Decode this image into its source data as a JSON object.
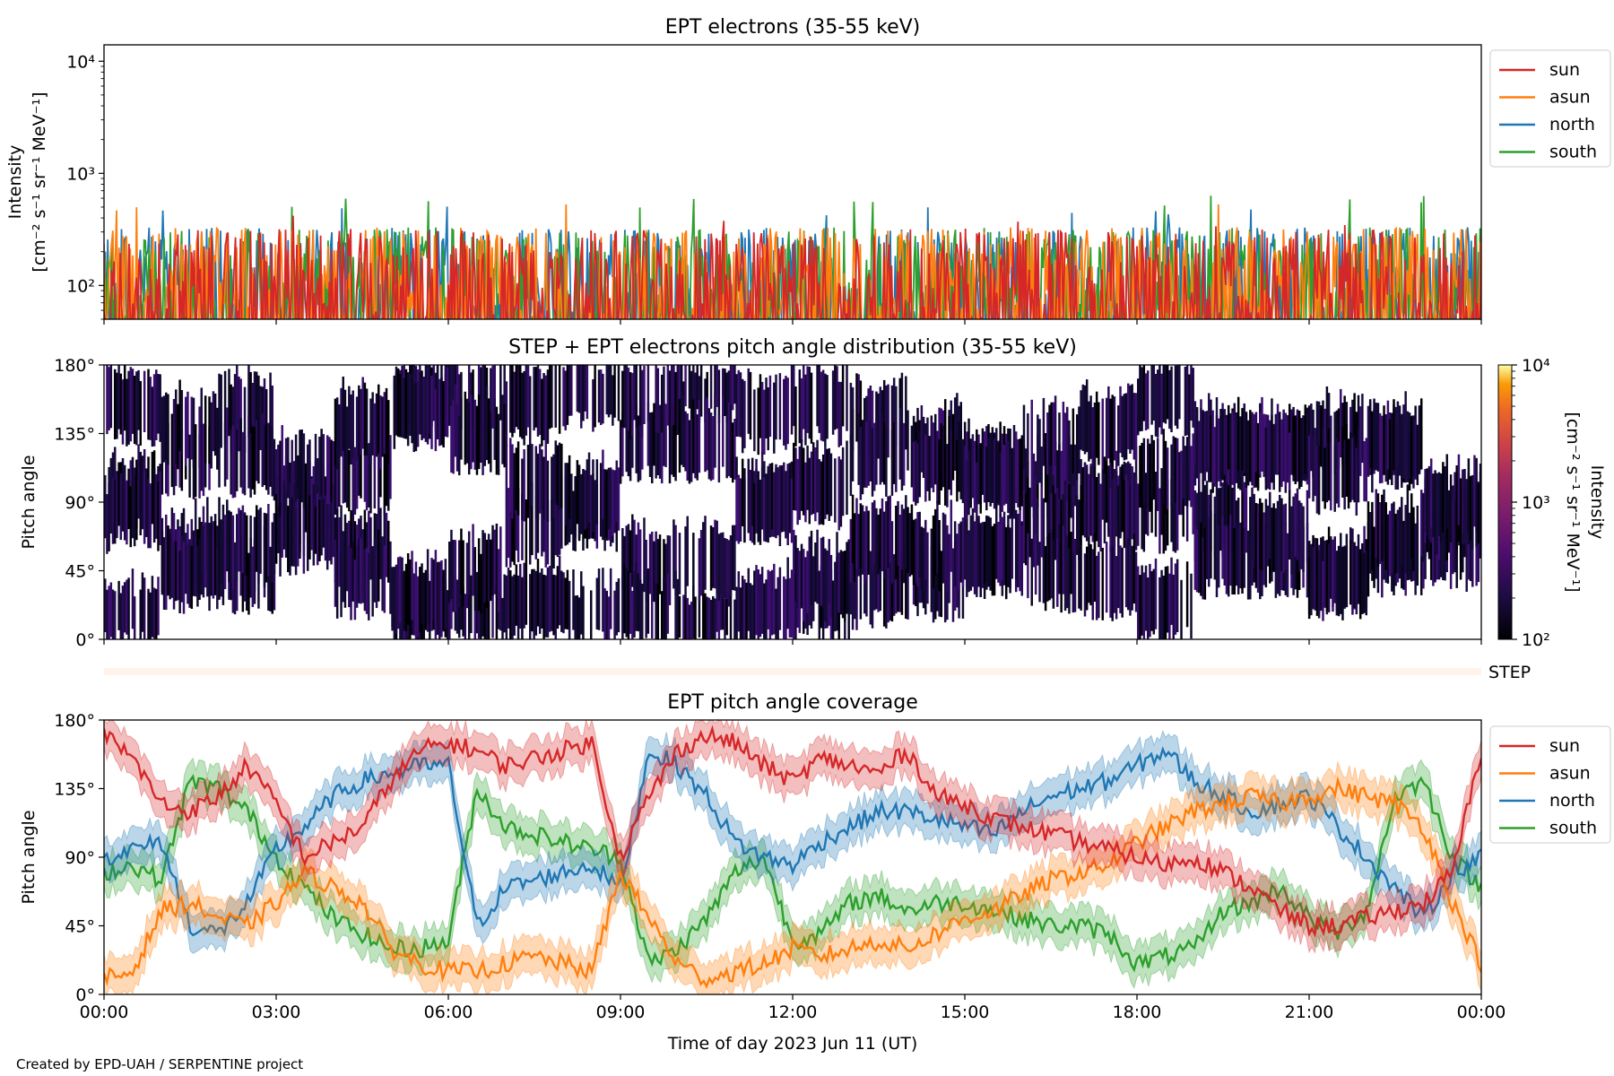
{
  "footer": "Created by EPD-UAH / SERPENTINE project",
  "colors": {
    "sun": "#d62728",
    "asun": "#ff7f0e",
    "north": "#1f77b4",
    "south": "#2ca02c"
  },
  "chart_data": [
    {
      "type": "line",
      "title": "EPT electrons (35-55 keV)",
      "ylabel": "Intensity",
      "yunit": "[cm⁻² s⁻¹ sr⁻¹ MeV⁻¹]",
      "yscale": "log",
      "ylim": [
        50,
        14000
      ],
      "yticks": [
        "10²",
        "10³",
        "10⁴"
      ],
      "ytick_values": [
        100,
        1000,
        10000
      ],
      "xlim": [
        "2023-06-11T00:00",
        "2023-06-12T00:00"
      ],
      "legend_placement": "outside-right",
      "series": [
        {
          "name": "sun",
          "typical_range": [
            50,
            320
          ],
          "peak": 420
        },
        {
          "name": "asun",
          "typical_range": [
            50,
            330
          ],
          "peak": 600
        },
        {
          "name": "north",
          "typical_range": [
            50,
            330
          ],
          "peak": 600
        },
        {
          "name": "south",
          "typical_range": [
            50,
            330
          ],
          "peak": 660
        }
      ]
    },
    {
      "type": "heatmap",
      "title": "STEP + EPT electrons pitch angle distribution (35-55 keV)",
      "ylabel": "Pitch angle",
      "yticks": [
        "0°",
        "45°",
        "90°",
        "135°",
        "180°"
      ],
      "ylim": [
        0,
        180
      ],
      "colorbar": {
        "label": "Intensity",
        "unit": "[cm⁻² s⁻¹ sr⁻¹ MeV⁻¹]",
        "scale": "log",
        "range": [
          100,
          10000
        ],
        "ticks": [
          "10²",
          "10³",
          "10⁴"
        ],
        "colormap": "inferno"
      },
      "step_label": "STEP"
    },
    {
      "type": "line",
      "title": "EPT pitch angle coverage",
      "ylabel": "Pitch angle",
      "xlabel": "Time of day 2023 Jun 11 (UT)",
      "yticks": [
        "0°",
        "45°",
        "90°",
        "135°",
        "180°"
      ],
      "ylim": [
        0,
        180
      ],
      "xticks": [
        "00:00",
        "03:00",
        "06:00",
        "09:00",
        "12:00",
        "15:00",
        "18:00",
        "21:00",
        "00:00"
      ],
      "x_hours": [
        0,
        3,
        6,
        9,
        12,
        15,
        18,
        21,
        24
      ],
      "legend_placement": "outside-right",
      "series": [
        {
          "name": "sun",
          "x": [
            0,
            0.5,
            1,
            1.5,
            2,
            2.5,
            3,
            3.5,
            4,
            4.5,
            5,
            5.5,
            6,
            6.5,
            7,
            7.5,
            8,
            8.5,
            9,
            9.5,
            10,
            10.5,
            11,
            11.5,
            12,
            12.5,
            13,
            13.5,
            14,
            14.5,
            15,
            15.5,
            16,
            16.5,
            17,
            17.5,
            18,
            18.5,
            19,
            19.5,
            20,
            20.5,
            21,
            21.5,
            22,
            22.5,
            23,
            23.5,
            24
          ],
          "values": [
            170,
            155,
            125,
            120,
            130,
            150,
            125,
            90,
            100,
            110,
            140,
            160,
            165,
            160,
            150,
            155,
            160,
            165,
            90,
            130,
            160,
            170,
            165,
            150,
            140,
            155,
            150,
            145,
            160,
            130,
            125,
            115,
            110,
            105,
            100,
            95,
            90,
            85,
            90,
            80,
            70,
            55,
            45,
            45,
            50,
            55,
            60,
            80,
            160
          ]
        },
        {
          "name": "asun",
          "x": [
            0,
            0.5,
            1,
            1.5,
            2,
            2.5,
            3,
            3.5,
            4,
            4.5,
            5,
            5.5,
            6,
            6.5,
            7,
            7.5,
            8,
            8.5,
            9,
            9.5,
            10,
            10.5,
            11,
            11.5,
            12,
            12.5,
            13,
            13.5,
            14,
            14.5,
            15,
            15.5,
            16,
            16.5,
            17,
            17.5,
            18,
            18.5,
            19,
            19.5,
            20,
            20.5,
            21,
            21.5,
            22,
            22.5,
            23,
            23.5,
            24
          ],
          "values": [
            10,
            15,
            55,
            60,
            50,
            45,
            60,
            80,
            70,
            60,
            30,
            20,
            15,
            15,
            20,
            25,
            20,
            15,
            80,
            50,
            20,
            10,
            15,
            20,
            30,
            25,
            30,
            35,
            30,
            40,
            50,
            55,
            65,
            75,
            80,
            85,
            100,
            110,
            120,
            125,
            130,
            125,
            130,
            135,
            130,
            125,
            110,
            60,
            20
          ]
        },
        {
          "name": "north",
          "x": [
            0,
            0.5,
            1,
            1.5,
            2,
            2.5,
            3,
            3.5,
            4,
            4.5,
            5,
            5.5,
            6,
            6.5,
            7,
            7.5,
            8,
            8.5,
            9,
            9.5,
            10,
            10.5,
            11,
            11.5,
            12,
            12.5,
            13,
            13.5,
            14,
            14.5,
            15,
            15.5,
            16,
            16.5,
            17,
            17.5,
            18,
            18.5,
            19,
            19.5,
            20,
            20.5,
            21,
            21.5,
            22,
            22.5,
            23,
            23.5,
            24
          ],
          "values": [
            90,
            95,
            100,
            45,
            40,
            60,
            95,
            110,
            130,
            140,
            145,
            150,
            150,
            45,
            70,
            75,
            80,
            85,
            70,
            160,
            150,
            130,
            100,
            90,
            85,
            100,
            110,
            120,
            120,
            115,
            110,
            105,
            120,
            130,
            135,
            140,
            150,
            160,
            140,
            130,
            120,
            125,
            130,
            110,
            90,
            70,
            50,
            80,
            90
          ]
        },
        {
          "name": "south",
          "x": [
            0,
            0.5,
            1,
            1.5,
            2,
            2.5,
            3,
            3.5,
            4,
            4.5,
            5,
            5.5,
            6,
            6.5,
            7,
            7.5,
            8,
            8.5,
            9,
            9.5,
            10,
            10.5,
            11,
            11.5,
            12,
            12.5,
            13,
            13.5,
            14,
            14.5,
            15,
            15.5,
            16,
            16.5,
            17,
            17.5,
            18,
            18.5,
            19,
            19.5,
            20,
            20.5,
            21,
            21.5,
            22,
            22.5,
            23,
            23.5,
            24
          ],
          "values": [
            80,
            85,
            75,
            140,
            135,
            120,
            90,
            70,
            50,
            40,
            30,
            30,
            35,
            135,
            110,
            105,
            100,
            95,
            90,
            20,
            30,
            50,
            80,
            90,
            35,
            40,
            60,
            65,
            55,
            60,
            60,
            55,
            50,
            45,
            45,
            40,
            20,
            25,
            30,
            55,
            60,
            70,
            50,
            40,
            55,
            130,
            140,
            90,
            70
          ]
        }
      ]
    }
  ]
}
